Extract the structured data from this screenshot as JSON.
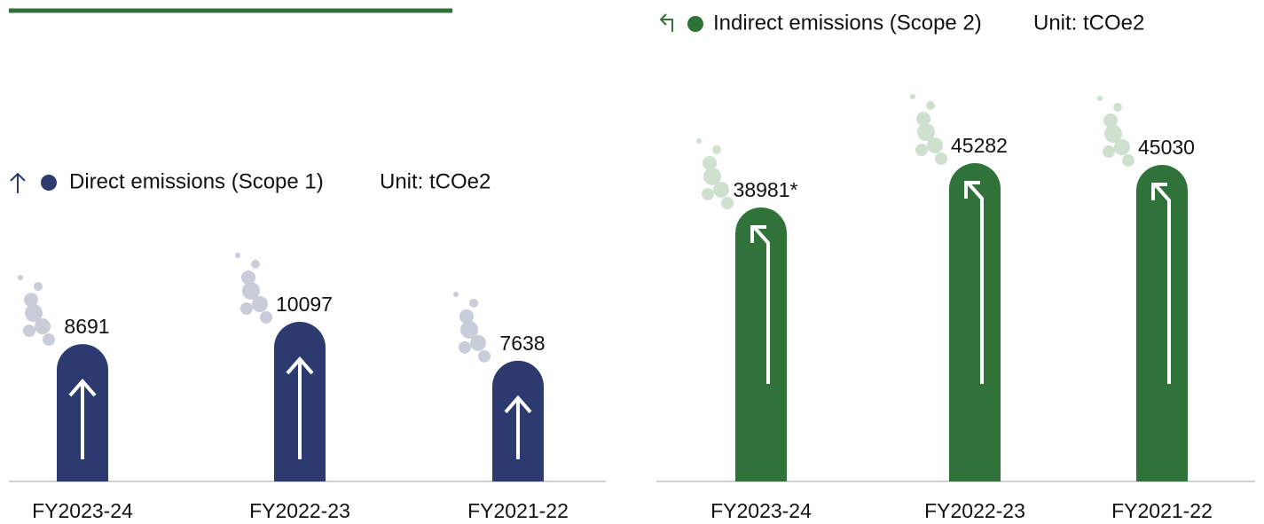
{
  "chart_data": [
    {
      "type": "bar",
      "unit": "Unit: tCOe2",
      "categories": [
        "FY2023-24",
        "FY2022-23",
        "FY2021-22"
      ],
      "series": [
        {
          "name": "Direct emissions (Scope 1)",
          "color": "#2d3a70",
          "values": [
            8691,
            10097,
            7638
          ]
        }
      ]
    },
    {
      "type": "bar",
      "unit": "Unit: tCOe2",
      "categories": [
        "FY2023-24",
        "FY2022-23",
        "FY2021-22"
      ],
      "series": [
        {
          "name": "Indirect emissions (Scope 2)",
          "color": "#2f733a",
          "values": [
            38981,
            45282,
            45030
          ],
          "value_labels": [
            "38981*",
            "45282",
            "45030"
          ]
        }
      ]
    }
  ]
}
